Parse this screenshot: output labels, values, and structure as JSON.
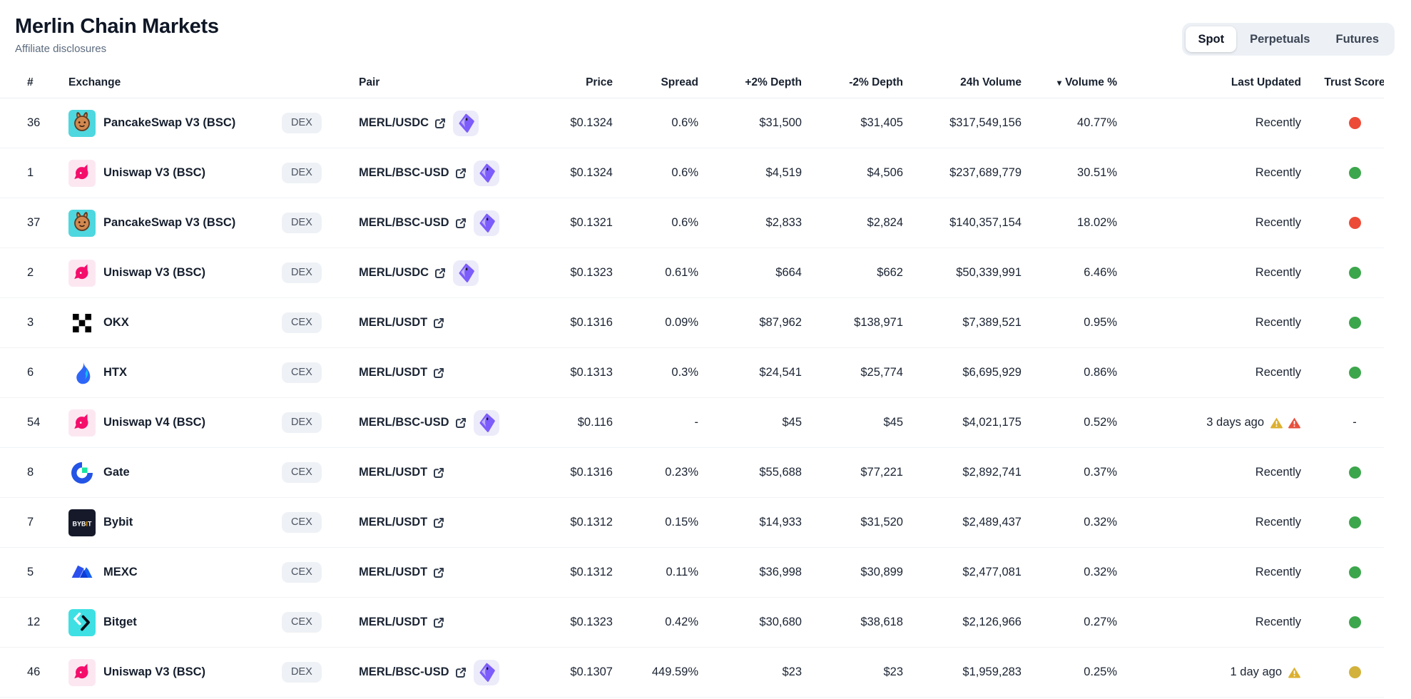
{
  "header": {
    "title": "Merlin Chain Markets",
    "affiliate_link": "Affiliate disclosures"
  },
  "tabs": [
    {
      "label": "Spot",
      "active": true
    },
    {
      "label": "Perpetuals",
      "active": false
    },
    {
      "label": "Futures",
      "active": false
    }
  ],
  "table": {
    "columns": {
      "rank": "#",
      "exchange": "Exchange",
      "pair": "Pair",
      "price": "Price",
      "spread": "Spread",
      "depth_plus": "+2% Depth",
      "depth_minus": "-2% Depth",
      "volume": "24h Volume",
      "volume_pct": "Volume %",
      "updated": "Last Updated",
      "trust": "Trust Score",
      "sort_indicator": "▾"
    },
    "rows": [
      {
        "rank": "36",
        "exchange": "PancakeSwap V3 (BSC)",
        "icon": "pancakeswap",
        "type": "DEX",
        "pair": "MERL/USDC",
        "terminal": true,
        "price": "$0.1324",
        "spread": "0.6%",
        "depth_plus": "$31,500",
        "depth_minus": "$31,405",
        "volume": "$317,549,156",
        "volume_pct": "40.77%",
        "updated": "Recently",
        "warnings": [],
        "trust": "red"
      },
      {
        "rank": "1",
        "exchange": "Uniswap V3 (BSC)",
        "icon": "uniswap",
        "type": "DEX",
        "pair": "MERL/BSC-USD",
        "terminal": true,
        "price": "$0.1324",
        "spread": "0.6%",
        "depth_plus": "$4,519",
        "depth_minus": "$4,506",
        "volume": "$237,689,779",
        "volume_pct": "30.51%",
        "updated": "Recently",
        "warnings": [],
        "trust": "green"
      },
      {
        "rank": "37",
        "exchange": "PancakeSwap V3 (BSC)",
        "icon": "pancakeswap",
        "type": "DEX",
        "pair": "MERL/BSC-USD",
        "terminal": true,
        "price": "$0.1321",
        "spread": "0.6%",
        "depth_plus": "$2,833",
        "depth_minus": "$2,824",
        "volume": "$140,357,154",
        "volume_pct": "18.02%",
        "updated": "Recently",
        "warnings": [],
        "trust": "red"
      },
      {
        "rank": "2",
        "exchange": "Uniswap V3 (BSC)",
        "icon": "uniswap",
        "type": "DEX",
        "pair": "MERL/USDC",
        "terminal": true,
        "price": "$0.1323",
        "spread": "0.61%",
        "depth_plus": "$664",
        "depth_minus": "$662",
        "volume": "$50,339,991",
        "volume_pct": "6.46%",
        "updated": "Recently",
        "warnings": [],
        "trust": "green"
      },
      {
        "rank": "3",
        "exchange": "OKX",
        "icon": "okx",
        "type": "CEX",
        "pair": "MERL/USDT",
        "terminal": false,
        "price": "$0.1316",
        "spread": "0.09%",
        "depth_plus": "$87,962",
        "depth_minus": "$138,971",
        "volume": "$7,389,521",
        "volume_pct": "0.95%",
        "updated": "Recently",
        "warnings": [],
        "trust": "green"
      },
      {
        "rank": "6",
        "exchange": "HTX",
        "icon": "htx",
        "type": "CEX",
        "pair": "MERL/USDT",
        "terminal": false,
        "price": "$0.1313",
        "spread": "0.3%",
        "depth_plus": "$24,541",
        "depth_minus": "$25,774",
        "volume": "$6,695,929",
        "volume_pct": "0.86%",
        "updated": "Recently",
        "warnings": [],
        "trust": "green"
      },
      {
        "rank": "54",
        "exchange": "Uniswap V4 (BSC)",
        "icon": "uniswap",
        "type": "DEX",
        "pair": "MERL/BSC-USD",
        "terminal": true,
        "price": "$0.116",
        "spread": "-",
        "depth_plus": "$45",
        "depth_minus": "$45",
        "volume": "$4,021,175",
        "volume_pct": "0.52%",
        "updated": "3 days ago",
        "warnings": [
          "yellow",
          "red"
        ],
        "trust": "none"
      },
      {
        "rank": "8",
        "exchange": "Gate",
        "icon": "gate",
        "type": "CEX",
        "pair": "MERL/USDT",
        "terminal": false,
        "price": "$0.1316",
        "spread": "0.23%",
        "depth_plus": "$55,688",
        "depth_minus": "$77,221",
        "volume": "$2,892,741",
        "volume_pct": "0.37%",
        "updated": "Recently",
        "warnings": [],
        "trust": "green"
      },
      {
        "rank": "7",
        "exchange": "Bybit",
        "icon": "bybit",
        "type": "CEX",
        "pair": "MERL/USDT",
        "terminal": false,
        "price": "$0.1312",
        "spread": "0.15%",
        "depth_plus": "$14,933",
        "depth_minus": "$31,520",
        "volume": "$2,489,437",
        "volume_pct": "0.32%",
        "updated": "Recently",
        "warnings": [],
        "trust": "green"
      },
      {
        "rank": "5",
        "exchange": "MEXC",
        "icon": "mexc",
        "type": "CEX",
        "pair": "MERL/USDT",
        "terminal": false,
        "price": "$0.1312",
        "spread": "0.11%",
        "depth_plus": "$36,998",
        "depth_minus": "$30,899",
        "volume": "$2,477,081",
        "volume_pct": "0.32%",
        "updated": "Recently",
        "warnings": [],
        "trust": "green"
      },
      {
        "rank": "12",
        "exchange": "Bitget",
        "icon": "bitget",
        "type": "CEX",
        "pair": "MERL/USDT",
        "terminal": false,
        "price": "$0.1323",
        "spread": "0.42%",
        "depth_plus": "$30,680",
        "depth_minus": "$38,618",
        "volume": "$2,126,966",
        "volume_pct": "0.27%",
        "updated": "Recently",
        "warnings": [],
        "trust": "green"
      },
      {
        "rank": "46",
        "exchange": "Uniswap V3 (BSC)",
        "icon": "uniswap",
        "type": "DEX",
        "pair": "MERL/BSC-USD",
        "terminal": true,
        "price": "$0.1307",
        "spread": "449.59%",
        "depth_plus": "$23",
        "depth_minus": "$23",
        "volume": "$1,959,283",
        "volume_pct": "0.25%",
        "updated": "1 day ago",
        "warnings": [
          "yellow"
        ],
        "trust": "yellow"
      }
    ]
  },
  "colors": {
    "trust_green": "#3CA64C",
    "trust_red": "#EC4B38",
    "trust_yellow": "#D2B23C",
    "warning_yellow": "#DCB02F",
    "warning_red": "#E7503D",
    "tab_bar_bg": "#EDF1F6",
    "badge_bg": "#EEF1F5",
    "pancakeswap_teal": "#4ED7DF",
    "bitget_cyan": "#3EE0E3",
    "geckoterminal_purple": "#7C5CFA"
  }
}
